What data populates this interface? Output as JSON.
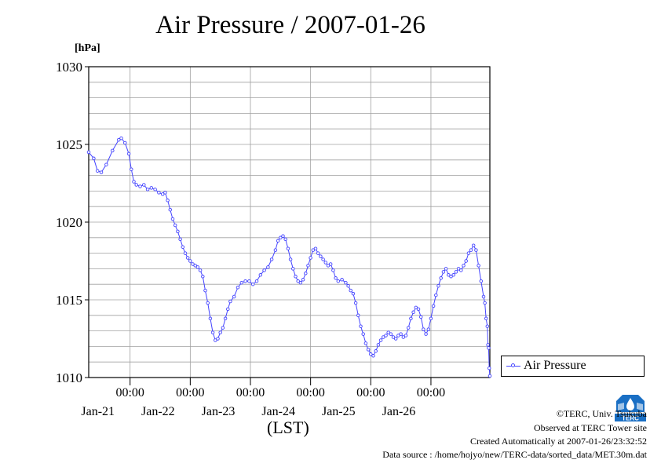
{
  "chart_data": {
    "type": "line",
    "title": "Air Pressure / 2007-01-26",
    "ylabel": "[hPa]",
    "xlabel": "(LST)",
    "ylim": [
      1010,
      1030
    ],
    "yticks": [
      "1010",
      "1015",
      "1020",
      "1025",
      "1030"
    ],
    "xlim": [
      "2007-01-20 07:30",
      "2007-01-26 23:30"
    ],
    "xticks": [
      {
        "at": "2007-01-21 00:00",
        "time": "00:00",
        "date": "Jan-21"
      },
      {
        "at": "2007-01-22 00:00",
        "time": "00:00",
        "date": "Jan-22"
      },
      {
        "at": "2007-01-23 00:00",
        "time": "00:00",
        "date": "Jan-23"
      },
      {
        "at": "2007-01-24 00:00",
        "time": "00:00",
        "date": "Jan-24"
      },
      {
        "at": "2007-01-25 00:00",
        "time": "00:00",
        "date": "Jan-25"
      },
      {
        "at": "2007-01-26 00:00",
        "time": "00:00",
        "date": "Jan-26"
      }
    ],
    "grid": true,
    "legend_position": "right",
    "series": [
      {
        "name": "Air Pressure",
        "color": "#4444ff",
        "points": [
          [
            "2007-01-20 07:30",
            1024.5
          ],
          [
            "2007-01-20 09:30",
            1024.1
          ],
          [
            "2007-01-20 11:00",
            1023.3
          ],
          [
            "2007-01-20 12:30",
            1023.2
          ],
          [
            "2007-01-20 14:30",
            1023.7
          ],
          [
            "2007-01-20 17:00",
            1024.6
          ],
          [
            "2007-01-20 19:30",
            1025.3
          ],
          [
            "2007-01-20 20:30",
            1025.4
          ],
          [
            "2007-01-20 22:00",
            1025.1
          ],
          [
            "2007-01-20 23:30",
            1024.4
          ],
          [
            "2007-01-21 00:30",
            1023.4
          ],
          [
            "2007-01-21 01:30",
            1022.6
          ],
          [
            "2007-01-21 02:30",
            1022.4
          ],
          [
            "2007-01-21 04:00",
            1022.3
          ],
          [
            "2007-01-21 05:30",
            1022.4
          ],
          [
            "2007-01-21 07:00",
            1022.1
          ],
          [
            "2007-01-21 08:30",
            1022.2
          ],
          [
            "2007-01-21 10:00",
            1022.1
          ],
          [
            "2007-01-21 11:30",
            1021.9
          ],
          [
            "2007-01-21 13:00",
            1021.8
          ],
          [
            "2007-01-21 14:00",
            1021.9
          ],
          [
            "2007-01-21 15:00",
            1021.4
          ],
          [
            "2007-01-21 16:00",
            1020.8
          ],
          [
            "2007-01-21 17:00",
            1020.2
          ],
          [
            "2007-01-21 18:00",
            1019.8
          ],
          [
            "2007-01-21 19:00",
            1019.4
          ],
          [
            "2007-01-21 20:00",
            1018.9
          ],
          [
            "2007-01-21 21:00",
            1018.4
          ],
          [
            "2007-01-21 22:00",
            1018.0
          ],
          [
            "2007-01-21 23:00",
            1017.7
          ],
          [
            "2007-01-22 00:00",
            1017.5
          ],
          [
            "2007-01-22 01:00",
            1017.3
          ],
          [
            "2007-01-22 02:00",
            1017.2
          ],
          [
            "2007-01-22 03:00",
            1017.1
          ],
          [
            "2007-01-22 04:00",
            1016.9
          ],
          [
            "2007-01-22 05:00",
            1016.5
          ],
          [
            "2007-01-22 06:00",
            1015.6
          ],
          [
            "2007-01-22 07:00",
            1014.8
          ],
          [
            "2007-01-22 08:00",
            1013.8
          ],
          [
            "2007-01-22 09:00",
            1012.9
          ],
          [
            "2007-01-22 10:00",
            1012.4
          ],
          [
            "2007-01-22 11:00",
            1012.5
          ],
          [
            "2007-01-22 12:00",
            1012.9
          ],
          [
            "2007-01-22 13:00",
            1013.2
          ],
          [
            "2007-01-22 14:00",
            1013.8
          ],
          [
            "2007-01-22 15:00",
            1014.4
          ],
          [
            "2007-01-22 16:00",
            1014.9
          ],
          [
            "2007-01-22 17:30",
            1015.2
          ],
          [
            "2007-01-22 19:00",
            1015.8
          ],
          [
            "2007-01-22 20:30",
            1016.1
          ],
          [
            "2007-01-22 22:00",
            1016.2
          ],
          [
            "2007-01-22 23:30",
            1016.2
          ],
          [
            "2007-01-23 01:00",
            1016.0
          ],
          [
            "2007-01-23 02:30",
            1016.2
          ],
          [
            "2007-01-23 04:00",
            1016.6
          ],
          [
            "2007-01-23 05:30",
            1016.9
          ],
          [
            "2007-01-23 07:00",
            1017.1
          ],
          [
            "2007-01-23 08:30",
            1017.6
          ],
          [
            "2007-01-23 10:00",
            1018.2
          ],
          [
            "2007-01-23 11:00",
            1018.8
          ],
          [
            "2007-01-23 12:00",
            1019.0
          ],
          [
            "2007-01-23 13:00",
            1019.1
          ],
          [
            "2007-01-23 14:00",
            1018.9
          ],
          [
            "2007-01-23 15:00",
            1018.3
          ],
          [
            "2007-01-23 16:00",
            1017.6
          ],
          [
            "2007-01-23 17:00",
            1017.0
          ],
          [
            "2007-01-23 18:00",
            1016.5
          ],
          [
            "2007-01-23 19:00",
            1016.2
          ],
          [
            "2007-01-23 20:00",
            1016.1
          ],
          [
            "2007-01-23 21:00",
            1016.3
          ],
          [
            "2007-01-23 22:00",
            1016.7
          ],
          [
            "2007-01-23 23:00",
            1017.2
          ],
          [
            "2007-01-24 00:00",
            1017.7
          ],
          [
            "2007-01-24 01:00",
            1018.2
          ],
          [
            "2007-01-24 02:00",
            1018.3
          ],
          [
            "2007-01-24 03:00",
            1018.0
          ],
          [
            "2007-01-24 04:00",
            1017.8
          ],
          [
            "2007-01-24 05:00",
            1017.6
          ],
          [
            "2007-01-24 06:00",
            1017.4
          ],
          [
            "2007-01-24 07:00",
            1017.2
          ],
          [
            "2007-01-24 08:00",
            1017.3
          ],
          [
            "2007-01-24 09:00",
            1016.9
          ],
          [
            "2007-01-24 10:00",
            1016.4
          ],
          [
            "2007-01-24 11:00",
            1016.2
          ],
          [
            "2007-01-24 12:30",
            1016.3
          ],
          [
            "2007-01-24 14:00",
            1016.1
          ],
          [
            "2007-01-24 15:00",
            1015.9
          ],
          [
            "2007-01-24 16:00",
            1015.6
          ],
          [
            "2007-01-24 17:00",
            1015.4
          ],
          [
            "2007-01-24 18:00",
            1014.8
          ],
          [
            "2007-01-24 19:00",
            1014.0
          ],
          [
            "2007-01-24 20:00",
            1013.3
          ],
          [
            "2007-01-24 21:00",
            1012.8
          ],
          [
            "2007-01-24 22:00",
            1012.2
          ],
          [
            "2007-01-24 23:00",
            1011.8
          ],
          [
            "2007-01-25 00:00",
            1011.5
          ],
          [
            "2007-01-25 01:00",
            1011.4
          ],
          [
            "2007-01-25 02:00",
            1011.7
          ],
          [
            "2007-01-25 03:00",
            1012.1
          ],
          [
            "2007-01-25 04:00",
            1012.4
          ],
          [
            "2007-01-25 05:00",
            1012.6
          ],
          [
            "2007-01-25 06:00",
            1012.7
          ],
          [
            "2007-01-25 07:00",
            1012.9
          ],
          [
            "2007-01-25 08:00",
            1012.8
          ],
          [
            "2007-01-25 09:00",
            1012.6
          ],
          [
            "2007-01-25 10:00",
            1012.5
          ],
          [
            "2007-01-25 11:00",
            1012.7
          ],
          [
            "2007-01-25 12:00",
            1012.8
          ],
          [
            "2007-01-25 13:00",
            1012.6
          ],
          [
            "2007-01-25 14:00",
            1012.7
          ],
          [
            "2007-01-25 15:00",
            1013.2
          ],
          [
            "2007-01-25 16:00",
            1013.8
          ],
          [
            "2007-01-25 17:00",
            1014.2
          ],
          [
            "2007-01-25 18:00",
            1014.5
          ],
          [
            "2007-01-25 19:00",
            1014.4
          ],
          [
            "2007-01-25 20:00",
            1013.9
          ],
          [
            "2007-01-25 21:00",
            1013.1
          ],
          [
            "2007-01-25 22:00",
            1012.8
          ],
          [
            "2007-01-25 23:00",
            1013.1
          ],
          [
            "2007-01-26 00:00",
            1013.8
          ],
          [
            "2007-01-26 01:00",
            1014.6
          ],
          [
            "2007-01-26 02:00",
            1015.3
          ],
          [
            "2007-01-26 03:00",
            1015.9
          ],
          [
            "2007-01-26 04:00",
            1016.4
          ],
          [
            "2007-01-26 05:00",
            1016.8
          ],
          [
            "2007-01-26 06:00",
            1017.0
          ],
          [
            "2007-01-26 07:00",
            1016.6
          ],
          [
            "2007-01-26 08:00",
            1016.5
          ],
          [
            "2007-01-26 09:00",
            1016.6
          ],
          [
            "2007-01-26 10:00",
            1016.8
          ],
          [
            "2007-01-26 11:00",
            1017.0
          ],
          [
            "2007-01-26 12:00",
            1016.9
          ],
          [
            "2007-01-26 13:00",
            1017.2
          ],
          [
            "2007-01-26 14:00",
            1017.5
          ],
          [
            "2007-01-26 15:00",
            1018.0
          ],
          [
            "2007-01-26 16:00",
            1018.2
          ],
          [
            "2007-01-26 17:00",
            1018.5
          ],
          [
            "2007-01-26 18:00",
            1018.2
          ],
          [
            "2007-01-26 19:00",
            1017.2
          ],
          [
            "2007-01-26 20:00",
            1016.2
          ],
          [
            "2007-01-26 21:00",
            1015.2
          ],
          [
            "2007-01-26 21:30",
            1014.8
          ],
          [
            "2007-01-26 22:00",
            1013.8
          ],
          [
            "2007-01-26 22:30",
            1013.3
          ],
          [
            "2007-01-26 22:45",
            1012.1
          ],
          [
            "2007-01-26 23:00",
            1011.9
          ],
          [
            "2007-01-26 23:15",
            1010.6
          ],
          [
            "2007-01-26 23:30",
            1010.1
          ]
        ]
      }
    ]
  },
  "footer": {
    "copyright": "©TERC, Univ. Tsukuba",
    "observed": "Observed at TERC Tower site",
    "created": "Created Automatically at 2007-01-26/23:32:52",
    "source": "Data source : /home/hojyo/new/TERC-data/sorted_data/MET.30m.dat"
  },
  "logo": {
    "text": "TERC",
    "color": "#1a6fc4"
  }
}
